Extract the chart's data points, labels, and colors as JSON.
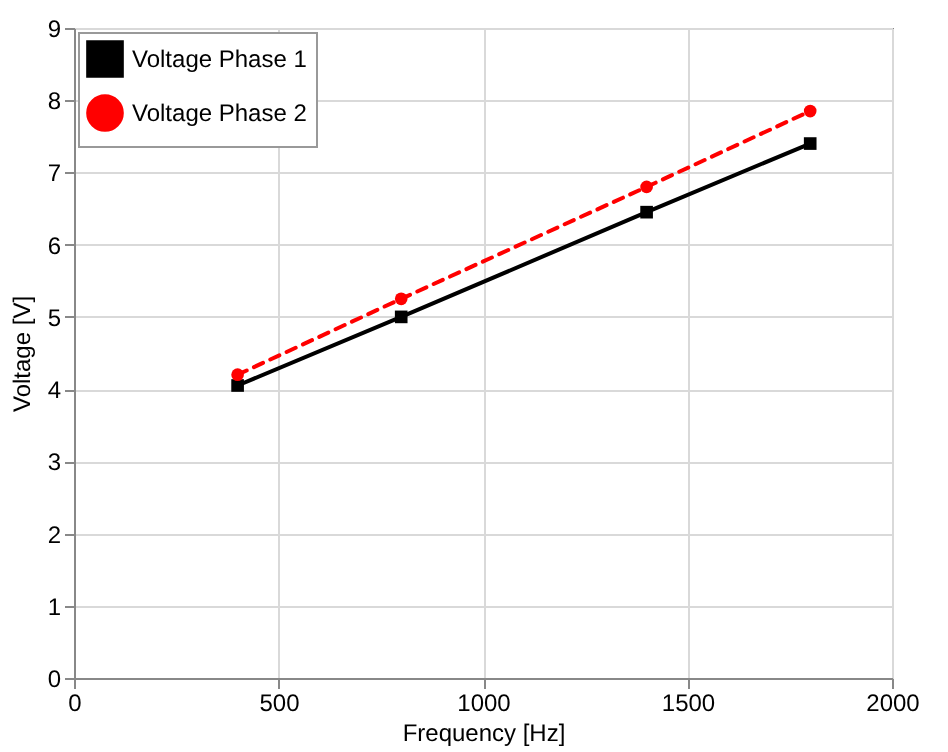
{
  "chart_data": {
    "type": "line",
    "xlabel": "Frequency [Hz]",
    "ylabel": "Voltage [V]",
    "x": [
      400,
      800,
      1400,
      1800
    ],
    "series": [
      {
        "name": "Voltage Phase 1",
        "color": "#000000",
        "values": [
          4.05,
          5.0,
          6.45,
          7.4
        ],
        "marker": "square",
        "line_style": "solid"
      },
      {
        "name": "Voltage Phase 2",
        "color": "#ff0000",
        "values": [
          4.2,
          5.25,
          6.8,
          7.85
        ],
        "marker": "circle",
        "line_style": "dashed"
      }
    ],
    "xlim": [
      0,
      2000
    ],
    "xticks": [
      0,
      500,
      1000,
      1500,
      2000
    ],
    "ylim": [
      0,
      9
    ],
    "yticks": [
      0,
      1,
      2,
      3,
      4,
      5,
      6,
      7,
      8,
      9
    ],
    "grid": true,
    "legend": "top left"
  }
}
